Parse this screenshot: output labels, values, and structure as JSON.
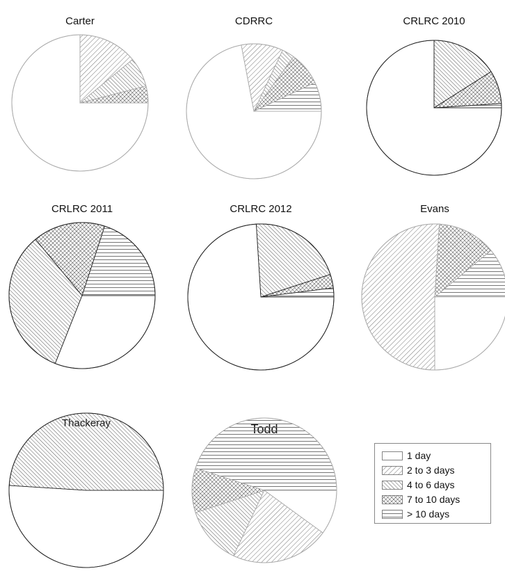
{
  "chart_data": {
    "type": "pie",
    "categories": [
      "1 day",
      "2 to 3 days",
      "4 to 6 days",
      "7 to 10 days",
      "> 10 days"
    ],
    "legend_placement": "bottom-right",
    "charts": [
      {
        "title": "Carter",
        "values": [
          75,
          14,
          7,
          4,
          0
        ]
      },
      {
        "title": "CDRRC",
        "values": [
          72,
          10,
          3,
          8,
          7
        ]
      },
      {
        "title": "CRLRC 2010",
        "values": [
          75,
          0,
          16,
          8,
          1
        ]
      },
      {
        "title": "CRLRC 2011",
        "values": [
          31,
          0,
          33,
          16,
          20
        ]
      },
      {
        "title": "CRLRC 2012",
        "values": [
          74,
          0,
          21,
          3,
          2
        ]
      },
      {
        "title": "Evans",
        "values": [
          25,
          51,
          0,
          13,
          11
        ]
      },
      {
        "title": "Thackeray",
        "values": [
          51,
          0,
          49,
          0,
          0
        ]
      },
      {
        "title": "Todd",
        "values": [
          10,
          22,
          13,
          10,
          45
        ]
      }
    ]
  },
  "legend": {
    "items": [
      {
        "label": "1 day",
        "pattern": "none"
      },
      {
        "label": "2 to 3 days",
        "pattern": "diag-right-fine"
      },
      {
        "label": "4 to 6 days",
        "pattern": "diag-left"
      },
      {
        "label": "7 to 10 days",
        "pattern": "crosshatch"
      },
      {
        "label": "> 10 days",
        "pattern": "horizontal"
      }
    ]
  }
}
